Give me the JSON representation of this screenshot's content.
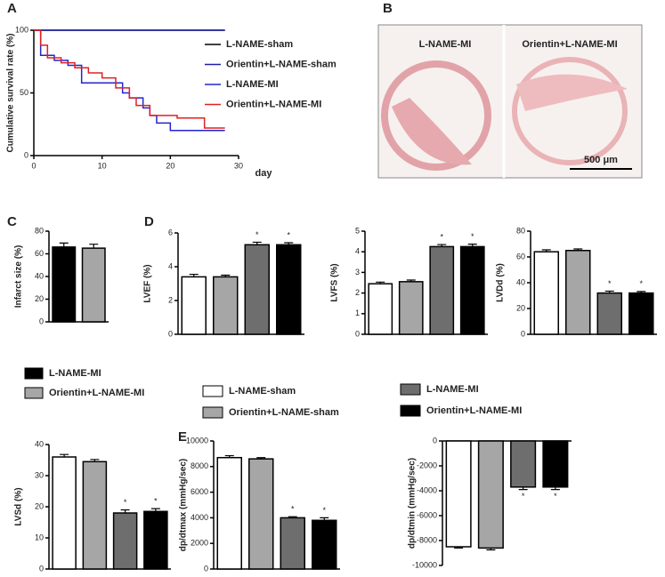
{
  "panel_labels": [
    "A",
    "B",
    "C",
    "D",
    "E"
  ],
  "histology": {
    "labels": [
      "L-NAME-MI",
      "Orientin+L-NAME-MI"
    ],
    "scale_bar": "500 μm"
  },
  "legends": [
    {
      "items": [
        {
          "name": "L-NAME-MI",
          "color": "#000000"
        },
        {
          "name": "Orientin+L-NAME-MI",
          "color": "#a6a6a6"
        }
      ]
    },
    {
      "items": [
        {
          "name": "L-NAME-sham",
          "color": "#ffffff"
        },
        {
          "name": "Orientin+L-NAME-sham",
          "color": "#a6a6a6"
        }
      ]
    },
    {
      "items": [
        {
          "name": "L-NAME-MI",
          "color": "#6e6e6e"
        },
        {
          "name": "Orientin+L-NAME-MI",
          "color": "#000000"
        }
      ]
    }
  ],
  "chart_data": [
    {
      "type": "step",
      "ylabel": "Cumulative survival rate (%)",
      "xlabel": "day",
      "xlim": [
        0,
        30
      ],
      "xticks": [
        0,
        10,
        20,
        30
      ],
      "ylim": [
        0,
        100
      ],
      "yticks": [
        0,
        50,
        100
      ],
      "series": [
        {
          "name": "L-NAME-sham",
          "color": "#000000",
          "x": [
            0,
            28
          ],
          "values": [
            100,
            100
          ]
        },
        {
          "name": "Orientin+L-NAME-sham",
          "color": "#1f1fa8",
          "x": [
            0,
            28
          ],
          "values": [
            100,
            100
          ]
        },
        {
          "name": "L-NAME-MI",
          "color": "#2424d0",
          "x": [
            0,
            1,
            3,
            5,
            7,
            12,
            13,
            14,
            16,
            17,
            18,
            20,
            28
          ],
          "values": [
            100,
            80,
            76,
            72,
            58,
            58,
            50,
            46,
            38,
            32,
            26,
            20,
            20
          ]
        },
        {
          "name": "Orientin+L-NAME-MI",
          "color": "#e02020",
          "x": [
            0,
            1,
            2,
            4,
            6,
            8,
            10,
            12,
            14,
            15,
            17,
            21,
            25,
            28
          ],
          "values": [
            100,
            88,
            78,
            74,
            70,
            66,
            62,
            54,
            46,
            40,
            32,
            30,
            22,
            22
          ]
        }
      ]
    },
    {
      "type": "bar",
      "ylabel": "Infarct size (%)",
      "values": [
        66,
        65
      ],
      "errors": [
        3.5,
        3.5
      ],
      "colors": [
        "#000000",
        "#a6a6a6"
      ],
      "ylim": [
        0,
        80
      ],
      "yticks": [
        0,
        20,
        40,
        60,
        80
      ]
    },
    {
      "type": "bar",
      "ylabel": "LVEF (%)",
      "values": [
        3.4,
        3.4,
        5.3,
        5.3
      ],
      "errors": [
        0.15,
        0.1,
        0.15,
        0.12
      ],
      "colors": [
        "#ffffff",
        "#a6a6a6",
        "#6e6e6e",
        "#000000"
      ],
      "significance": [
        null,
        null,
        "*",
        "*"
      ],
      "ylim": [
        0,
        6
      ],
      "yticks": [
        0,
        2,
        4,
        6
      ]
    },
    {
      "type": "bar",
      "ylabel": "LVFS (%)",
      "values": [
        2.45,
        2.55,
        4.25,
        4.25
      ],
      "errors": [
        0.08,
        0.08,
        0.1,
        0.12
      ],
      "colors": [
        "#ffffff",
        "#a6a6a6",
        "#6e6e6e",
        "#000000"
      ],
      "significance": [
        null,
        null,
        "*",
        "*"
      ],
      "ylim": [
        0,
        5
      ],
      "yticks": [
        0,
        1,
        2,
        3,
        4,
        5
      ]
    },
    {
      "type": "bar",
      "ylabel": "LVDd (%)",
      "values": [
        64,
        65,
        32,
        32
      ],
      "errors": [
        1.5,
        1.2,
        1.5,
        1.2
      ],
      "colors": [
        "#ffffff",
        "#a6a6a6",
        "#6e6e6e",
        "#000000"
      ],
      "significance": [
        null,
        null,
        "*",
        "*"
      ],
      "ylim": [
        0,
        80
      ],
      "yticks": [
        0,
        20,
        40,
        60,
        80
      ]
    },
    {
      "type": "bar",
      "ylabel": "LVSd (%)",
      "values": [
        36,
        34.5,
        18,
        18.5
      ],
      "errors": [
        0.8,
        0.7,
        1,
        0.9
      ],
      "colors": [
        "#ffffff",
        "#a6a6a6",
        "#6e6e6e",
        "#000000"
      ],
      "significance": [
        null,
        null,
        "*",
        "*"
      ],
      "ylim": [
        0,
        40
      ],
      "yticks": [
        0,
        10,
        20,
        30,
        40
      ]
    },
    {
      "type": "bar",
      "ylabel": "dp/dtmax (mmHg/sec)",
      "values": [
        8700,
        8600,
        4000,
        3800
      ],
      "errors": [
        150,
        100,
        80,
        200
      ],
      "colors": [
        "#ffffff",
        "#a6a6a6",
        "#6e6e6e",
        "#000000"
      ],
      "significance": [
        null,
        null,
        "*",
        "*"
      ],
      "ylim": [
        0,
        10000
      ],
      "yticks": [
        0,
        2000,
        4000,
        6000,
        8000,
        10000
      ]
    },
    {
      "type": "bar",
      "ylabel": "dp/dtmin (mmHg/sec)",
      "values": [
        -8500,
        -8600,
        -3700,
        -3700
      ],
      "errors": [
        100,
        150,
        200,
        200
      ],
      "colors": [
        "#ffffff",
        "#a6a6a6",
        "#6e6e6e",
        "#000000"
      ],
      "significance": [
        null,
        null,
        "*",
        "*"
      ],
      "ylim": [
        -10000,
        0
      ],
      "yticks": [
        -10000,
        -8000,
        -6000,
        -4000,
        -2000,
        0
      ]
    }
  ]
}
